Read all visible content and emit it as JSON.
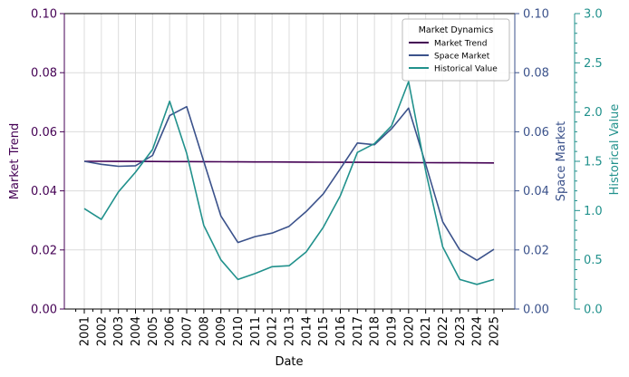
{
  "chart_data": {
    "type": "line",
    "xlabel": "Date",
    "categories": [
      "2001",
      "2002",
      "2003",
      "2004",
      "2005",
      "2006",
      "2007",
      "2008",
      "2009",
      "2010",
      "2011",
      "2012",
      "2013",
      "2014",
      "2015",
      "2016",
      "2017",
      "2018",
      "2019",
      "2020",
      "2021",
      "2022",
      "2023",
      "2024",
      "2025"
    ],
    "axes": {
      "left": {
        "label": "Market Trend",
        "ylim": [
          0,
          0.1
        ],
        "ticks": [
          "0.00",
          "0.02",
          "0.04",
          "0.06",
          "0.08",
          "0.10"
        ],
        "tick_values": [
          0,
          0.02,
          0.04,
          0.06,
          0.08,
          0.1
        ],
        "color": "#440154"
      },
      "right1": {
        "label": "Space Market",
        "ylim": [
          0,
          0.1
        ],
        "ticks": [
          "0.00",
          "0.02",
          "0.04",
          "0.06",
          "0.08",
          "0.10"
        ],
        "tick_values": [
          0,
          0.02,
          0.04,
          0.06,
          0.08,
          0.1
        ],
        "color": "#3b528b"
      },
      "right2": {
        "label": "Historical Value",
        "ylim": [
          0,
          3.0
        ],
        "ticks": [
          "0.0",
          "0.5",
          "1.0",
          "1.5",
          "2.0",
          "2.5",
          "3.0"
        ],
        "tick_values": [
          0,
          0.5,
          1.0,
          1.5,
          2.0,
          2.5,
          3.0
        ],
        "color": "#21918c"
      }
    },
    "legend": {
      "title": "Market Dynamics",
      "position": "top-right"
    },
    "series": [
      {
        "name": "Market Trend",
        "axis": "left",
        "color": "#440154",
        "values": [
          0.05,
          0.05,
          0.04998,
          0.04996,
          0.04994,
          0.04992,
          0.0499,
          0.04988,
          0.04985,
          0.04982,
          0.0498,
          0.04977,
          0.04975,
          0.04972,
          0.0497,
          0.04967,
          0.04965,
          0.04962,
          0.0496,
          0.04957,
          0.04955,
          0.04952,
          0.0495,
          0.04947,
          0.04945
        ]
      },
      {
        "name": "Space Market",
        "axis": "right1",
        "color": "#3b528b",
        "values": [
          0.05,
          0.049,
          0.0483,
          0.0485,
          0.052,
          0.0655,
          0.0685,
          0.05,
          0.0315,
          0.0225,
          0.0245,
          0.0257,
          0.028,
          0.033,
          0.039,
          0.0475,
          0.0562,
          0.0556,
          0.061,
          0.068,
          0.049,
          0.0295,
          0.02,
          0.0165,
          0.0202
        ]
      },
      {
        "name": "Historical Value",
        "axis": "right2",
        "color": "#21918c",
        "values": [
          1.02,
          0.91,
          1.19,
          1.39,
          1.62,
          2.11,
          1.58,
          0.85,
          0.5,
          0.3,
          0.36,
          0.43,
          0.44,
          0.58,
          0.83,
          1.15,
          1.59,
          1.68,
          1.86,
          2.31,
          1.4,
          0.63,
          0.3,
          0.25,
          0.3
        ]
      }
    ]
  }
}
